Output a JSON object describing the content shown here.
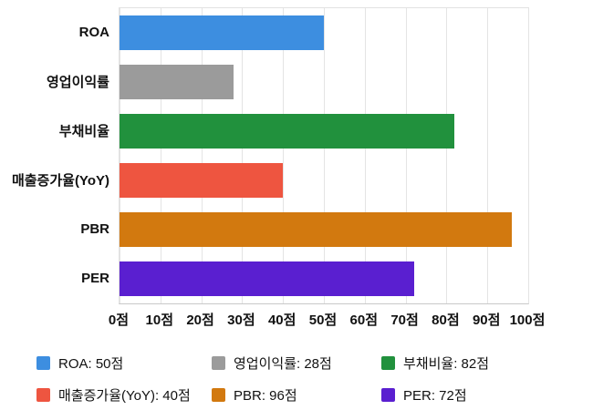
{
  "chart_data": {
    "type": "bar",
    "orientation": "horizontal",
    "title": "",
    "xlabel": "",
    "ylabel": "",
    "unit": "점",
    "xlim": [
      0,
      100
    ],
    "grid": true,
    "legend_position": "bottom",
    "categories": [
      "ROA",
      "영업이익률",
      "부채비율",
      "매출증가율(YoY)",
      "PBR",
      "PER"
    ],
    "values": [
      50,
      28,
      82,
      40,
      96,
      72
    ],
    "colors": [
      "#3d8ee0",
      "#9b9b9b",
      "#21913d",
      "#ee5540",
      "#d2790f",
      "#5a1fd0"
    ],
    "x_ticks": [
      "0점",
      "10점",
      "20점",
      "30점",
      "40점",
      "50점",
      "60점",
      "70점",
      "80점",
      "90점",
      "100점"
    ],
    "legend": [
      {
        "label": "ROA: 50점",
        "color": "#3d8ee0"
      },
      {
        "label": "영업이익률: 28점",
        "color": "#9b9b9b"
      },
      {
        "label": "부채비율: 82점",
        "color": "#21913d"
      },
      {
        "label": "매출증가율(YoY): 40점",
        "color": "#ee5540"
      },
      {
        "label": "PBR: 96점",
        "color": "#d2790f"
      },
      {
        "label": "PER: 72점",
        "color": "#5a1fd0"
      }
    ]
  }
}
